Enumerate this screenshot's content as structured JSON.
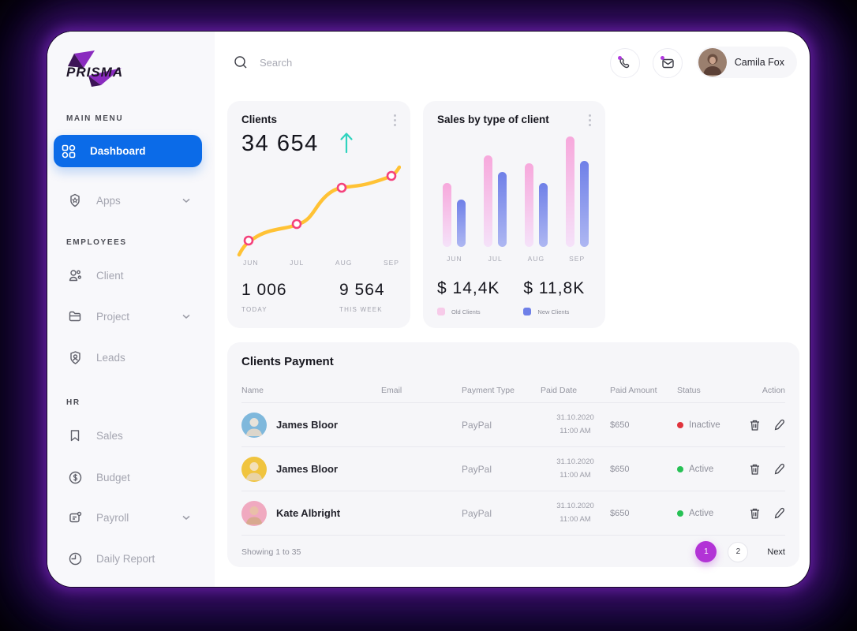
{
  "topbar": {
    "search_placeholder": "Search",
    "user_name": "Camila Fox"
  },
  "sidebar": {
    "logo_text": "PRISMA",
    "sections": [
      {
        "label": "MAIN MENU",
        "items": [
          {
            "label": "Dashboard",
            "active": true
          },
          {
            "label": "Apps",
            "chevron": true
          }
        ]
      },
      {
        "label": "EMPLOYEES",
        "items": [
          {
            "label": "Client"
          },
          {
            "label": "Project",
            "chevron": true
          },
          {
            "label": "Leads"
          }
        ]
      },
      {
        "label": "HR",
        "items": [
          {
            "label": "Sales"
          },
          {
            "label": "Budget"
          },
          {
            "label": "Payroll",
            "chevron": true
          },
          {
            "label": "Daily Report"
          }
        ]
      }
    ]
  },
  "clients_card": {
    "title": "Clients",
    "value": "34 654",
    "months": [
      "JUN",
      "JUL",
      "AUG",
      "SEP"
    ],
    "today_value": "1 006",
    "today_label": "TODAY",
    "week_value": "9 564",
    "week_label": "THIS WEEK"
  },
  "sales_card": {
    "title": "Sales by type of client",
    "old_total": "$ 14,4K",
    "old_label": "Old Clients",
    "new_total": "$ 11,8K",
    "new_label": "New Clients"
  },
  "chart_data": [
    {
      "type": "line",
      "title": "Clients",
      "x": [
        "JUN",
        "JUL",
        "AUG",
        "SEP"
      ],
      "values_relative_pct": [
        18,
        36,
        70,
        83
      ],
      "ylabel": "",
      "xlabel": "",
      "grid": false,
      "axes_hidden": true,
      "line_color": "#FFC235",
      "marker_color": "#F4417C"
    },
    {
      "type": "bar",
      "title": "Sales by type of client",
      "categories": [
        "JUN",
        "JUL",
        "AUG",
        "SEP"
      ],
      "series": [
        {
          "name": "Old Clients",
          "total_label": "$ 14,4K",
          "relative_height_pct": [
            58,
            83,
            76,
            100
          ],
          "color_top": "#F7A8DC",
          "color_bottom": "#F5E2F9"
        },
        {
          "name": "New Clients",
          "total_label": "$ 11,8K",
          "relative_height_pct": [
            43,
            68,
            58,
            78
          ],
          "color_top": "#6F80E8",
          "color_bottom": "#AEB7F2"
        }
      ],
      "ylim": [
        0,
        100
      ],
      "grid": false,
      "legend_position": "bottom"
    }
  ],
  "table": {
    "title": "Clients Payment",
    "columns": [
      "Name",
      "Email",
      "Payment Type",
      "Paid Date",
      "Paid Amount",
      "Status",
      "Action"
    ],
    "rows": [
      {
        "name": "James Bloor",
        "payment_type": "PayPal",
        "date": "31.10.2020",
        "time": "11:00 AM",
        "amount": "$650",
        "status": "Inactive",
        "status_color": "#E0333C",
        "avatar_color": "#7FB8DC"
      },
      {
        "name": "James Bloor",
        "payment_type": "PayPal",
        "date": "31.10.2020",
        "time": "11:00 AM",
        "amount": "$650",
        "status": "Active",
        "status_color": "#27C155",
        "avatar_color": "#F0C43F"
      },
      {
        "name": "Kate Albright",
        "payment_type": "PayPal",
        "date": "31.10.2020",
        "time": "11:00 AM",
        "amount": "$650",
        "status": "Active",
        "status_color": "#27C155",
        "avatar_color": "#F0A9C0"
      }
    ],
    "footer": {
      "showing": "Showing 1 to 35",
      "pages": [
        "1",
        "2"
      ],
      "active_page": "1",
      "next_label": "Next"
    }
  },
  "colors": {
    "accent_blue": "#0B6BE8",
    "pager_purple": "#B233D6",
    "arrow_teal": "#2FD3BE",
    "camila_avatar": "#9a7f6e"
  }
}
